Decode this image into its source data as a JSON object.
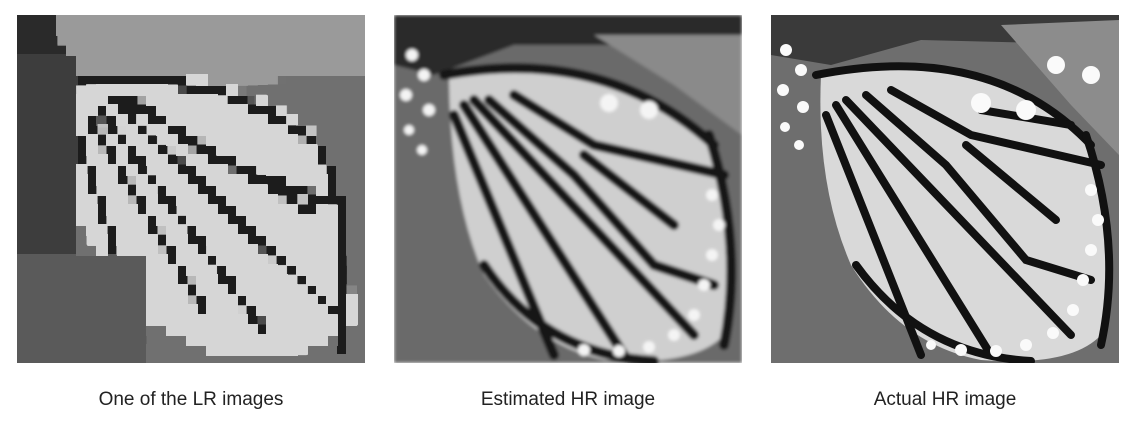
{
  "figure": {
    "panels": [
      {
        "caption": "One of the LR images",
        "style": "pixelated"
      },
      {
        "caption": "Estimated HR image",
        "style": "soft"
      },
      {
        "caption": "Actual HR image",
        "style": "sharp"
      }
    ],
    "subject_icon": "butterfly-wing-image",
    "colors": {
      "background": "#ffffff",
      "caption_text": "#222222"
    }
  }
}
